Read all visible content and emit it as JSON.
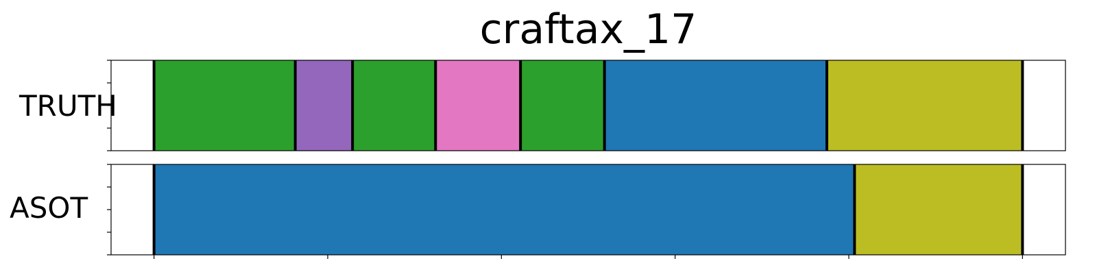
{
  "chart_data": {
    "type": "bar",
    "title": "craftax_17",
    "xlim": [
      0,
      100
    ],
    "rows": [
      {
        "label": "TRUTH",
        "segments": [
          {
            "start": 4.5,
            "end": 19.3,
            "color": "#2ca02c"
          },
          {
            "start": 19.3,
            "end": 25.3,
            "color": "#9467bd"
          },
          {
            "start": 25.3,
            "end": 34.0,
            "color": "#2ca02c"
          },
          {
            "start": 34.0,
            "end": 42.9,
            "color": "#e377c2"
          },
          {
            "start": 42.9,
            "end": 51.7,
            "color": "#2ca02c"
          },
          {
            "start": 51.7,
            "end": 75.0,
            "color": "#1f77b4"
          },
          {
            "start": 75.0,
            "end": 95.5,
            "color": "#bcbd22"
          }
        ]
      },
      {
        "label": "ASOT",
        "segments": [
          {
            "start": 4.5,
            "end": 77.9,
            "color": "#1f77b4"
          },
          {
            "start": 77.9,
            "end": 95.5,
            "color": "#bcbd22"
          }
        ]
      }
    ],
    "x_ticks": [
      4.5,
      22.7,
      40.9,
      59.1,
      77.3,
      95.5
    ],
    "y_ticks_per_row": 5,
    "grid": false,
    "boundary_color": "#000000"
  }
}
